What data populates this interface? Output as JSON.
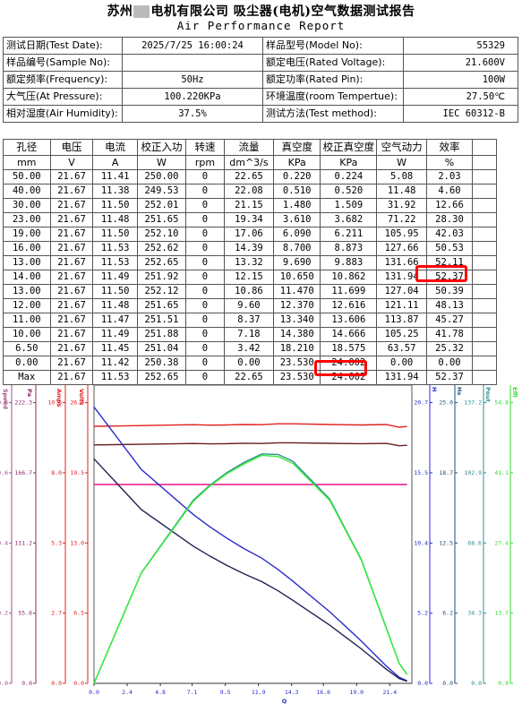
{
  "report": {
    "title_cn_left": "苏州",
    "title_cn_right": "电机有限公司    吸尘器(电机)空气数据测试报告",
    "title_en": "Air Performance Report"
  },
  "info": [
    [
      {
        "label": "测试日期(Test Date):",
        "value": "2025/7/25 16:00:24"
      },
      {
        "label": "样品型号(Model No):",
        "value": "55329"
      }
    ],
    [
      {
        "label": "样品编号(Sample No):",
        "value": ""
      },
      {
        "label": "额定电压(Rated Voltage):",
        "value": "21.600V"
      }
    ],
    [
      {
        "label": "额定频率(Frequency):",
        "value": "50Hz"
      },
      {
        "label": "额定功率(Rated Pin):",
        "value": "100W"
      }
    ],
    [
      {
        "label": "大气压(At Pressure):",
        "value": "100.220KPa"
      },
      {
        "label": "环境温度(room Tempertue):",
        "value": "27.50℃"
      }
    ],
    [
      {
        "label": "相对湿度(Air Humidity):",
        "value": "37.5%"
      },
      {
        "label": "测试方法(Test method):",
        "value": "IEC 60312-B"
      }
    ]
  ],
  "table": {
    "headers": [
      "孔径",
      "电压",
      "电流",
      "校正入功",
      "转速",
      "流量",
      "真空度",
      "校正真空度",
      "空气动力",
      "效率"
    ],
    "units": [
      "mm",
      "V",
      "A",
      "W",
      "rpm",
      "dm^3/s",
      "KPa",
      "KPa",
      "W",
      "%"
    ],
    "rows": [
      [
        "50.00",
        "21.67",
        "11.41",
        "250.00",
        "0",
        "22.65",
        "0.220",
        "0.224",
        "5.08",
        "2.03"
      ],
      [
        "40.00",
        "21.67",
        "11.38",
        "249.53",
        "0",
        "22.08",
        "0.510",
        "0.520",
        "11.48",
        "4.60"
      ],
      [
        "30.00",
        "21.67",
        "11.50",
        "252.01",
        "0",
        "21.15",
        "1.480",
        "1.509",
        "31.92",
        "12.66"
      ],
      [
        "23.00",
        "21.67",
        "11.48",
        "251.65",
        "0",
        "19.34",
        "3.610",
        "3.682",
        "71.22",
        "28.30"
      ],
      [
        "19.00",
        "21.67",
        "11.50",
        "252.10",
        "0",
        "17.06",
        "6.090",
        "6.211",
        "105.95",
        "42.03"
      ],
      [
        "16.00",
        "21.67",
        "11.53",
        "252.62",
        "0",
        "14.39",
        "8.700",
        "8.873",
        "127.66",
        "50.53"
      ],
      [
        "13.00",
        "21.67",
        "11.53",
        "252.65",
        "0",
        "13.32",
        "9.690",
        "9.883",
        "131.66",
        "52.11"
      ],
      [
        "14.00",
        "21.67",
        "11.49",
        "251.92",
        "0",
        "12.15",
        "10.650",
        "10.862",
        "131.94",
        "52.37"
      ],
      [
        "13.00",
        "21.67",
        "11.50",
        "252.12",
        "0",
        "10.86",
        "11.470",
        "11.699",
        "127.04",
        "50.39"
      ],
      [
        "12.00",
        "21.67",
        "11.48",
        "251.65",
        "0",
        "9.60",
        "12.370",
        "12.616",
        "121.11",
        "48.13"
      ],
      [
        "11.00",
        "21.67",
        "11.47",
        "251.51",
        "0",
        "8.37",
        "13.340",
        "13.606",
        "113.87",
        "45.27"
      ],
      [
        "10.00",
        "21.67",
        "11.49",
        "251.88",
        "0",
        "7.18",
        "14.380",
        "14.666",
        "105.25",
        "41.78"
      ],
      [
        "6.50",
        "21.67",
        "11.45",
        "251.04",
        "0",
        "3.42",
        "18.210",
        "18.575",
        "63.57",
        "25.32"
      ],
      [
        "0.00",
        "21.67",
        "11.42",
        "250.38",
        "0",
        "0.00",
        "23.530",
        "24.002",
        "0.00",
        "0.00"
      ]
    ],
    "max_row": [
      "Max",
      "21.67",
      "11.53",
      "252.65",
      "0",
      "22.65",
      "23.530",
      "24.002",
      "131.94",
      "52.37"
    ]
  },
  "chart_data": {
    "type": "line",
    "x_axis": {
      "name": "Q",
      "ticks": [
        "0.0",
        "2.4",
        "4.8",
        "7.1",
        "9.5",
        "11.9",
        "14.3",
        "16.6",
        "19.0",
        "21.4"
      ]
    },
    "left_axes": [
      {
        "name": "Speed",
        "color": "#a0528c",
        "ticks": [
          "0.0",
          "0.2",
          "0.4",
          "0.6",
          "0.8"
        ]
      },
      {
        "name": "Pa",
        "color": "#8b2b6a",
        "ticks": [
          "0.0",
          "55.6",
          "111.2",
          "166.7",
          "222.3"
        ]
      },
      {
        "name": "Amps",
        "color": "#e02020",
        "ticks": [
          "0.0",
          "2.7",
          "5.3",
          "8.0",
          "10.6"
        ]
      },
      {
        "name": "Volts",
        "color": "#e02020",
        "ticks": [
          "0.0",
          "6.5",
          "13.0",
          "19.5",
          "26.0"
        ]
      }
    ],
    "right_axes": [
      {
        "name": "H",
        "color": "#2b2bcc",
        "ticks": [
          "0.0",
          "5.2",
          "10.4",
          "15.5",
          "20.7"
        ]
      },
      {
        "name": "Hs",
        "color": "#1f4f7a",
        "ticks": [
          "0.0",
          "6.2",
          "12.5",
          "18.7",
          "25.0"
        ]
      },
      {
        "name": "Pout",
        "color": "#2f8f8f",
        "ticks": [
          "0.0",
          "34.3",
          "68.6",
          "102.9",
          "137.2"
        ]
      },
      {
        "name": "Effi",
        "color": "#33dd33",
        "ticks": [
          "0.0",
          "13.7",
          "27.4",
          "41.1",
          "54.8"
        ]
      }
    ],
    "series": [
      {
        "color": "#6b1e1e",
        "x": [
          0.0,
          3.42,
          7.18,
          8.37,
          9.6,
          10.86,
          12.15,
          13.32,
          14.39,
          17.06,
          19.34,
          21.15,
          22.08,
          22.65
        ],
        "y": [
          250.38,
          251.04,
          251.88,
          251.51,
          251.65,
          252.12,
          251.92,
          252.65,
          252.62,
          252.1,
          251.65,
          252.01,
          249.53,
          250.0
        ],
        "axis_max": 313.2
      },
      {
        "color": "#e02020",
        "x": [
          0.0,
          3.42,
          7.18,
          8.37,
          9.6,
          10.86,
          12.15,
          13.32,
          14.39,
          17.06,
          19.34,
          21.15,
          22.08,
          22.65
        ],
        "y": [
          11.42,
          11.45,
          11.49,
          11.47,
          11.48,
          11.5,
          11.49,
          11.53,
          11.53,
          11.5,
          11.48,
          11.5,
          11.38,
          11.41
        ],
        "axis_max": 13.25
      },
      {
        "color": "#ee1188",
        "x": [
          0.0,
          22.65
        ],
        "y": [
          21.67,
          21.67
        ],
        "axis_max": 32.5
      },
      {
        "color": "#2b2bcc",
        "x": [
          0.0,
          3.42,
          7.18,
          8.37,
          9.6,
          10.86,
          12.15,
          13.32,
          14.39,
          17.06,
          19.34,
          21.15,
          22.08,
          22.65
        ],
        "y": [
          24.002,
          18.575,
          14.666,
          13.606,
          12.616,
          11.699,
          10.862,
          9.883,
          8.873,
          6.211,
          3.682,
          1.509,
          0.52,
          0.224
        ],
        "axis_max": 25.9
      },
      {
        "color": "#1f1f4f",
        "x": [
          0.0,
          3.42,
          7.18,
          8.37,
          9.6,
          10.86,
          12.15,
          13.32,
          14.39,
          17.06,
          19.34,
          21.15,
          22.08,
          22.65
        ],
        "y": [
          23.53,
          18.21,
          14.38,
          13.34,
          12.37,
          11.47,
          10.65,
          9.69,
          8.7,
          6.09,
          3.61,
          1.48,
          0.51,
          0.22
        ],
        "axis_max": 31.25
      },
      {
        "color": "#2f8f8f",
        "x": [
          0.0,
          3.42,
          7.18,
          8.37,
          9.6,
          10.86,
          12.15,
          13.32,
          14.39,
          17.06,
          19.34,
          21.15,
          22.08,
          22.65
        ],
        "y": [
          0.0,
          63.57,
          105.25,
          113.87,
          121.11,
          127.04,
          131.94,
          131.66,
          127.66,
          105.95,
          71.22,
          31.92,
          11.48,
          5.08
        ],
        "axis_max": 171.5
      },
      {
        "color": "#33ee33",
        "x": [
          0.0,
          3.42,
          7.18,
          8.37,
          9.6,
          10.86,
          12.15,
          13.32,
          14.39,
          17.06,
          19.34,
          21.15,
          22.08,
          22.65
        ],
        "y": [
          0.0,
          25.32,
          41.78,
          45.27,
          48.13,
          50.39,
          52.37,
          52.11,
          50.53,
          42.03,
          28.3,
          12.66,
          4.6,
          2.03
        ],
        "axis_max": 68.5
      }
    ]
  }
}
